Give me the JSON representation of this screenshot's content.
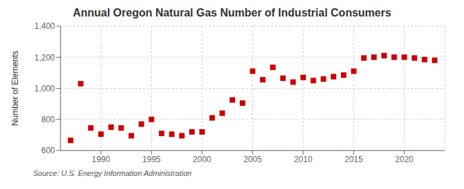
{
  "chart_data": {
    "type": "scatter",
    "title": "Annual Oregon Natural Gas Number of Industrial Consumers",
    "ylabel": "Number of Elements",
    "annotations": [
      "Source: U.S. Energy Information Administration"
    ],
    "x": [
      1987,
      1988,
      1989,
      1990,
      1991,
      1992,
      1993,
      1994,
      1995,
      1996,
      1997,
      1998,
      1999,
      2000,
      2001,
      2002,
      2003,
      2004,
      2005,
      2006,
      2007,
      2008,
      2009,
      2010,
      2011,
      2012,
      2013,
      2014,
      2015,
      2016,
      2017,
      2018,
      2019,
      2020,
      2021,
      2022,
      2023
    ],
    "values": [
      665,
      1030,
      745,
      705,
      750,
      745,
      695,
      770,
      800,
      710,
      705,
      695,
      720,
      720,
      810,
      840,
      925,
      905,
      1110,
      1055,
      1135,
      1065,
      1040,
      1070,
      1050,
      1060,
      1075,
      1085,
      1110,
      1195,
      1200,
      1210,
      1200,
      1200,
      1195,
      1185,
      1180
    ],
    "color": "#cc0000",
    "marker": "square",
    "grid": true,
    "xlim": [
      1986,
      2024
    ],
    "xticks": [
      1990,
      1995,
      2000,
      2005,
      2010,
      2015,
      2020
    ],
    "ylim": [
      600,
      1400
    ],
    "yticks": [
      600,
      800,
      {
        "value": 1000,
        "label": "1,000"
      },
      {
        "value": 1200,
        "label": "1,200"
      },
      {
        "value": 1400,
        "label": "1,400"
      }
    ]
  }
}
